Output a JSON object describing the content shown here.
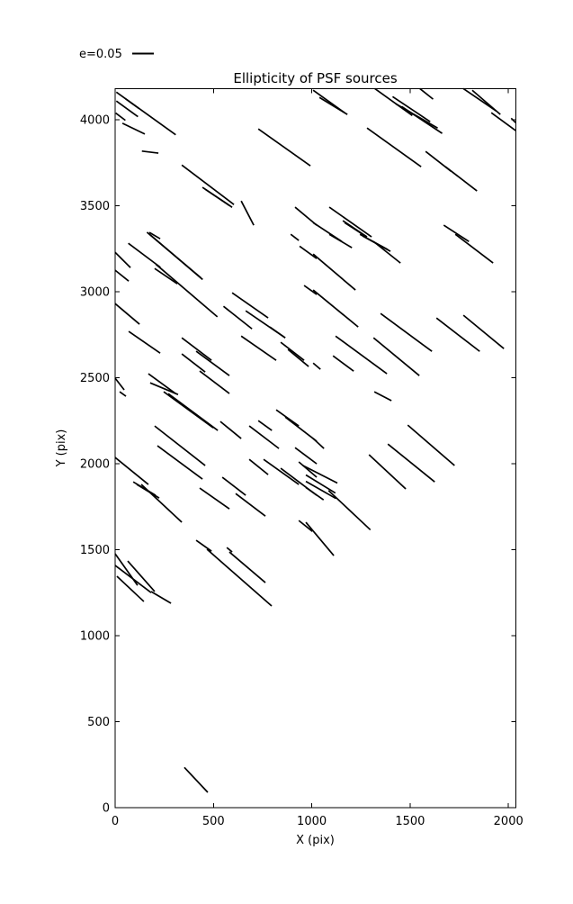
{
  "legend": {
    "label": "e=0.05"
  },
  "chart_data": {
    "type": "line-segments",
    "title": "Ellipticity of PSF sources",
    "xlabel": "X (pix)",
    "ylabel": "Y (pix)",
    "xlim": [
      0,
      2037
    ],
    "ylim": [
      0,
      4183
    ],
    "xticks": [
      0,
      500,
      1000,
      1500,
      2000
    ],
    "yticks": [
      0,
      500,
      1000,
      1500,
      2000,
      2500,
      3000,
      3500,
      4000
    ],
    "grid": false,
    "legend_label": "e=0.05",
    "legend_e_value": 0.05,
    "line_color": "#000000",
    "background_color": "#ffffff",
    "segments": [
      [
        6,
        4162,
        308,
        3914
      ],
      [
        52,
        4124,
        120,
        4068
      ],
      [
        6,
        4110,
        116,
        4019
      ],
      [
        3,
        4040,
        52,
        3998
      ],
      [
        37,
        3981,
        151,
        3918
      ],
      [
        136,
        3819,
        220,
        3807
      ],
      [
        339,
        3738,
        604,
        3508
      ],
      [
        444,
        3608,
        581,
        3503
      ],
      [
        458,
        3597,
        595,
        3492
      ],
      [
        641,
        3529,
        705,
        3388
      ],
      [
        728,
        3948,
        993,
        3733
      ],
      [
        915,
        3493,
        1025,
        3388
      ],
      [
        174,
        3346,
        229,
        3309
      ],
      [
        1007,
        4173,
        1167,
        4042
      ],
      [
        1039,
        4131,
        1181,
        4032
      ],
      [
        1320,
        4183,
        1511,
        4026
      ],
      [
        1411,
        4136,
        1602,
        3990
      ],
      [
        1427,
        4094,
        1640,
        3953
      ],
      [
        1457,
        4078,
        1663,
        3922
      ],
      [
        1549,
        4183,
        1617,
        4121
      ],
      [
        1770,
        4183,
        1937,
        4053
      ],
      [
        1816,
        4173,
        1959,
        4032
      ],
      [
        1913,
        4042,
        2037,
        3938
      ],
      [
        2014,
        4010,
        2037,
        3984
      ],
      [
        1281,
        3953,
        1556,
        3728
      ],
      [
        1579,
        3817,
        1708,
        3702
      ],
      [
        1680,
        3728,
        1840,
        3587
      ],
      [
        1089,
        3493,
        1304,
        3320
      ],
      [
        1158,
        3414,
        1281,
        3320
      ],
      [
        1167,
        3403,
        1272,
        3325
      ],
      [
        1007,
        3403,
        1153,
        3293
      ],
      [
        1671,
        3388,
        1799,
        3293
      ],
      [
        162,
        3347,
        436,
        3082
      ],
      [
        175,
        3335,
        445,
        3072
      ],
      [
        67,
        3283,
        230,
        3143
      ],
      [
        0,
        3230,
        78,
        3141
      ],
      [
        0,
        3126,
        69,
        3063
      ],
      [
        201,
        3136,
        316,
        3047
      ],
      [
        207,
        3161,
        520,
        2855
      ],
      [
        0,
        2932,
        124,
        2812
      ],
      [
        69,
        2770,
        229,
        2644
      ],
      [
        595,
        2995,
        778,
        2849
      ],
      [
        551,
        2916,
        696,
        2785
      ],
      [
        664,
        2890,
        865,
        2733
      ],
      [
        641,
        2743,
        819,
        2602
      ],
      [
        787,
        2796,
        865,
        2733
      ],
      [
        893,
        3335,
        934,
        3299
      ],
      [
        938,
        3266,
        1025,
        3194
      ],
      [
        961,
        3037,
        1025,
        2985
      ],
      [
        842,
        2707,
        961,
        2602
      ],
      [
        879,
        2665,
        984,
        2566
      ],
      [
        339,
        2733,
        490,
        2602
      ],
      [
        339,
        2639,
        458,
        2534
      ],
      [
        169,
        2524,
        307,
        2409
      ],
      [
        178,
        2471,
        320,
        2403
      ],
      [
        0,
        2498,
        46,
        2430
      ],
      [
        412,
        2655,
        581,
        2513
      ],
      [
        430,
        2540,
        581,
        2409
      ],
      [
        1089,
        3335,
        1204,
        3257
      ],
      [
        1245,
        3335,
        1387,
        3246
      ],
      [
        1259,
        3325,
        1400,
        3236
      ],
      [
        1314,
        3293,
        1451,
        3168
      ],
      [
        1730,
        3335,
        1922,
        3168
      ],
      [
        1007,
        3220,
        1222,
        3011
      ],
      [
        1007,
        3011,
        1236,
        2796
      ],
      [
        1350,
        2874,
        1611,
        2654
      ],
      [
        1634,
        2848,
        1854,
        2654
      ],
      [
        1771,
        2864,
        1977,
        2670
      ],
      [
        1121,
        2743,
        1382,
        2524
      ],
      [
        1314,
        2733,
        1547,
        2513
      ],
      [
        1108,
        2628,
        1213,
        2539
      ],
      [
        1007,
        2586,
        1044,
        2550
      ],
      [
        247,
        2419,
        499,
        2209
      ],
      [
        270,
        2408,
        522,
        2194
      ],
      [
        23,
        2419,
        55,
        2393
      ],
      [
        201,
        2220,
        458,
        1990
      ],
      [
        215,
        2105,
        444,
        1911
      ],
      [
        535,
        2246,
        641,
        2147
      ],
      [
        682,
        2220,
        833,
        2089
      ],
      [
        728,
        2251,
        797,
        2194
      ],
      [
        819,
        2314,
        934,
        2220
      ],
      [
        865,
        2272,
        1025,
        2131
      ],
      [
        915,
        2094,
        1025,
        2000
      ],
      [
        682,
        2026,
        778,
        1937
      ],
      [
        755,
        2026,
        934,
        1880
      ],
      [
        842,
        1974,
        1025,
        1817
      ],
      [
        934,
        2011,
        1025,
        1922
      ],
      [
        0,
        2037,
        169,
        1880
      ],
      [
        92,
        1895,
        206,
        1817
      ],
      [
        110,
        1880,
        224,
        1801
      ],
      [
        133,
        1880,
        339,
        1660
      ],
      [
        430,
        1859,
        581,
        1738
      ],
      [
        545,
        1922,
        664,
        1817
      ],
      [
        613,
        1827,
        764,
        1696
      ],
      [
        412,
        1555,
        490,
        1492
      ],
      [
        568,
        1513,
        595,
        1487
      ],
      [
        934,
        1670,
        1003,
        1607
      ],
      [
        1318,
        2419,
        1405,
        2367
      ],
      [
        1488,
        2225,
        1726,
        1990
      ],
      [
        1387,
        2115,
        1625,
        1895
      ],
      [
        1291,
        2053,
        1478,
        1854
      ],
      [
        1007,
        2147,
        1062,
        2089
      ],
      [
        955,
        1990,
        1130,
        1888
      ],
      [
        970,
        1935,
        1120,
        1830
      ],
      [
        970,
        1898,
        1123,
        1798
      ],
      [
        970,
        1862,
        1060,
        1790
      ],
      [
        1085,
        1845,
        1298,
        1616
      ],
      [
        970,
        1660,
        1112,
        1466
      ],
      [
        0,
        1477,
        114,
        1293
      ],
      [
        64,
        1435,
        201,
        1257
      ],
      [
        0,
        1409,
        183,
        1251
      ],
      [
        9,
        1346,
        146,
        1199
      ],
      [
        183,
        1257,
        284,
        1189
      ],
      [
        467,
        1503,
        796,
        1173
      ],
      [
        581,
        1487,
        764,
        1309
      ],
      [
        352,
        234,
        471,
        89
      ]
    ]
  }
}
